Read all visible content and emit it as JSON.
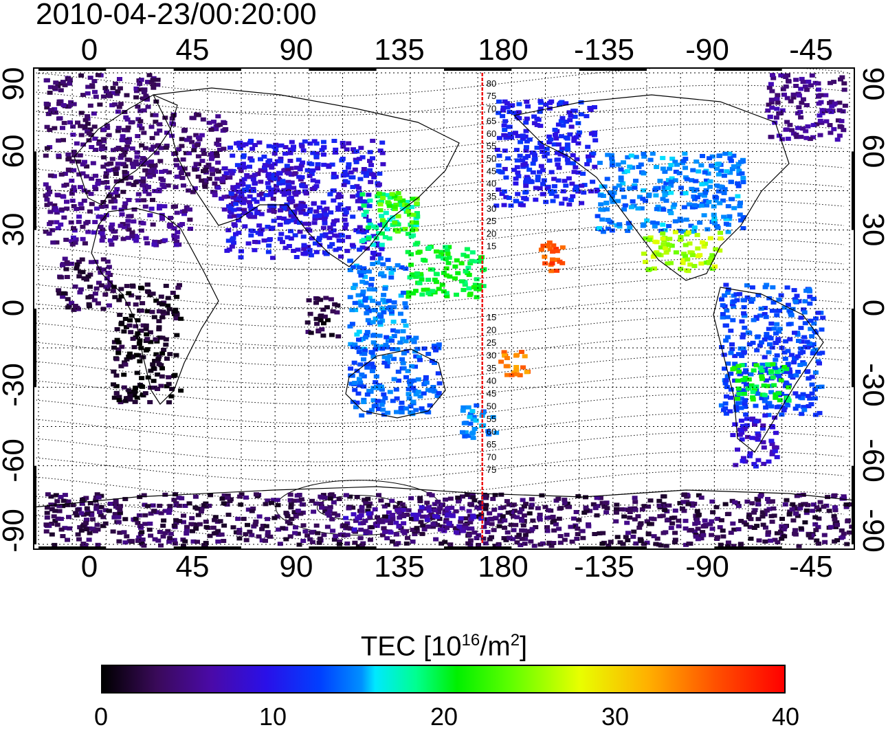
{
  "timestamp": "2010-04-23/00:20:00",
  "lon_ticks": [
    "0",
    "45",
    "90",
    "135",
    "180",
    "-135",
    "-90",
    "-45"
  ],
  "lat_ticks": [
    "90",
    "60",
    "30",
    "0",
    "-30",
    "-60",
    "-90"
  ],
  "map": {
    "lon_range": [
      -22,
      338
    ],
    "lat_range": [
      -90,
      90
    ],
    "red_meridian_lon": 175,
    "grid_lines": "dotted",
    "contour_labels_north": [
      "80",
      "75",
      "70",
      "65",
      "60",
      "55",
      "50",
      "45",
      "40",
      "35",
      "30",
      "25",
      "20",
      "15"
    ],
    "contour_labels_south": [
      "15",
      "20",
      "25",
      "30",
      "35",
      "40",
      "45",
      "50",
      "55",
      "60",
      "65",
      "70",
      "75"
    ]
  },
  "colorbar": {
    "title": "TEC  [10",
    "title_sup1": "16",
    "title_mid": "/m",
    "title_sup2": "2",
    "title_end": "]",
    "ticks": [
      "0",
      "10",
      "20",
      "30",
      "40"
    ],
    "range": [
      0,
      40
    ]
  },
  "chart_data": {
    "type": "heatmap",
    "title": "2010-04-23/00:20:00",
    "xlabel": "",
    "ylabel": "",
    "xlim": [
      -22,
      338
    ],
    "ylim": [
      -90,
      90
    ],
    "colorbar_label": "TEC [10^16/m^2]",
    "colorbar_range": [
      0,
      40
    ],
    "regions": [
      {
        "lon": [
          -20,
          30
        ],
        "lat": [
          40,
          90
        ],
        "tec": 4
      },
      {
        "lon": [
          30,
          60
        ],
        "lat": [
          45,
          75
        ],
        "tec": 4
      },
      {
        "lon": [
          55,
          95
        ],
        "lat": [
          35,
          55
        ],
        "tec": 6
      },
      {
        "lon": [
          60,
          130
        ],
        "lat": [
          20,
          65
        ],
        "tec": 9
      },
      {
        "lon": [
          -20,
          45
        ],
        "lat": [
          25,
          40
        ],
        "tec": 5
      },
      {
        "lon": [
          -15,
          10
        ],
        "lat": [
          0,
          20
        ],
        "tec": 3
      },
      {
        "lon": [
          10,
          40
        ],
        "lat": [
          -35,
          10
        ],
        "tec": 1
      },
      {
        "lon": [
          95,
          110
        ],
        "lat": [
          -10,
          5
        ],
        "tec": 2
      },
      {
        "lon": [
          120,
          145
        ],
        "lat": [
          25,
          45
        ],
        "tec": 18
      },
      {
        "lon": [
          128,
          145
        ],
        "lat": [
          30,
          45
        ],
        "tec": 23
      },
      {
        "lon": [
          115,
          140
        ],
        "lat": [
          -15,
          20
        ],
        "tec": 14
      },
      {
        "lon": [
          140,
          175
        ],
        "lat": [
          5,
          25
        ],
        "tec": 20
      },
      {
        "lon": [
          115,
          155
        ],
        "lat": [
          -40,
          -10
        ],
        "tec": 13
      },
      {
        "lon": [
          165,
          180
        ],
        "lat": [
          -50,
          -35
        ],
        "tec": 14
      },
      {
        "lon": [
          180,
          195
        ],
        "lat": [
          -25,
          -15
        ],
        "tec": 34
      },
      {
        "lon": [
          200,
          210
        ],
        "lat": [
          15,
          30
        ],
        "tec": 36
      },
      {
        "lon": [
          180,
          225
        ],
        "lat": [
          40,
          80
        ],
        "tec": 10
      },
      {
        "lon": [
          225,
          290
        ],
        "lat": [
          30,
          60
        ],
        "tec": 14
      },
      {
        "lon": [
          245,
          280
        ],
        "lat": [
          15,
          30
        ],
        "tec": 26
      },
      {
        "lon": [
          280,
          325
        ],
        "lat": [
          -40,
          10
        ],
        "tec": 12
      },
      {
        "lon": [
          285,
          310
        ],
        "lat": [
          -35,
          -20
        ],
        "tec": 20
      },
      {
        "lon": [
          285,
          305
        ],
        "lat": [
          -60,
          -40
        ],
        "tec": 8
      },
      {
        "lon": [
          300,
          335
        ],
        "lat": [
          65,
          90
        ],
        "tec": 5
      },
      {
        "lon": [
          -20,
          338
        ],
        "lat": [
          -90,
          -70
        ],
        "tec": 3
      },
      {
        "lon": [
          110,
          180
        ],
        "lat": [
          -85,
          -75
        ],
        "tec": 6
      }
    ]
  }
}
